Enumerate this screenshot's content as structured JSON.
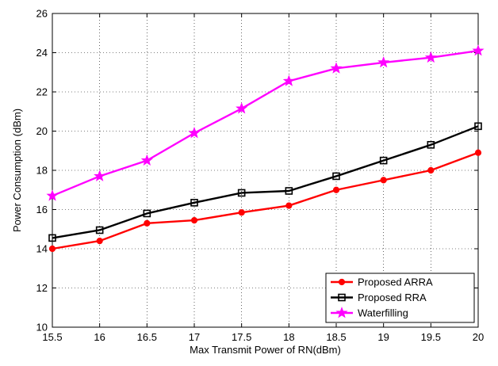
{
  "chart_data": {
    "type": "line",
    "title": "",
    "xlabel": "Max Transmit Power of RN(dBm)",
    "ylabel": "Power Consumption (dBm)",
    "xlim": [
      15.5,
      20
    ],
    "ylim": [
      10,
      26
    ],
    "xticks": [
      "15.5",
      "16",
      "16.5",
      "17",
      "17.5",
      "18",
      "18.5",
      "19",
      "19.5",
      "20"
    ],
    "yticks": [
      "10",
      "12",
      "14",
      "16",
      "18",
      "20",
      "22",
      "24",
      "26"
    ],
    "grid": true,
    "legend_position": "bottom-right",
    "x": [
      15.5,
      16,
      16.5,
      17,
      17.5,
      18,
      18.5,
      19,
      19.5,
      20
    ],
    "series": [
      {
        "name": "Proposed ARRA",
        "color": "#ff0000",
        "marker": "filled-circle",
        "values": [
          14.0,
          14.4,
          15.3,
          15.45,
          15.85,
          16.2,
          17.0,
          17.5,
          18.0,
          18.9
        ]
      },
      {
        "name": "Proposed RRA",
        "color": "#000000",
        "marker": "open-square",
        "values": [
          14.55,
          14.95,
          15.8,
          16.35,
          16.85,
          16.95,
          17.7,
          18.5,
          19.3,
          20.25
        ]
      },
      {
        "name": "Waterfilling",
        "color": "#ff00ff",
        "marker": "star",
        "values": [
          16.7,
          17.7,
          18.5,
          19.9,
          21.15,
          22.55,
          23.2,
          23.5,
          23.75,
          24.1
        ]
      }
    ]
  }
}
